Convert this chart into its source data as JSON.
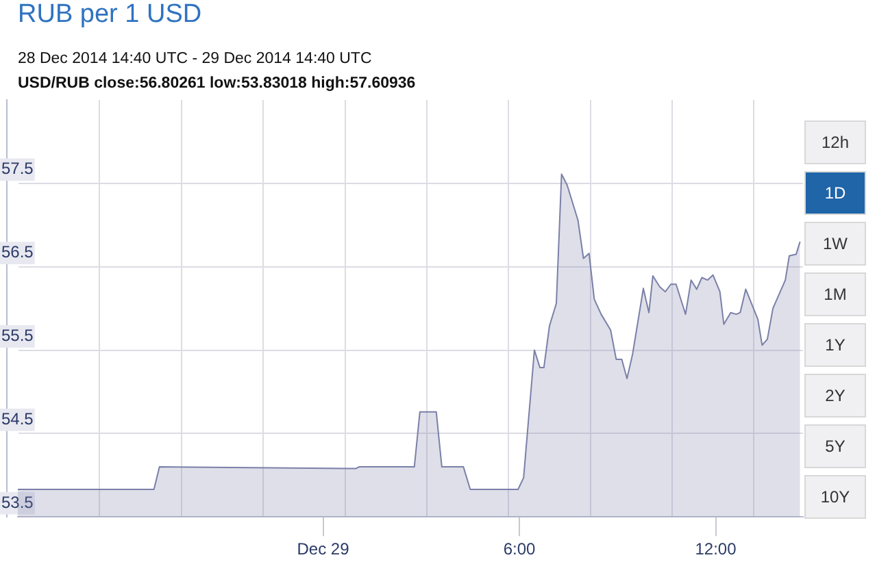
{
  "chart_data": {
    "type": "area",
    "title": "RUB per 1 USD",
    "subtitle": "28 Dec 2014 14:40 UTC - 29 Dec 2014 14:40 UTC",
    "annotations": [
      "USD/RUB close:56.80261 low:53.83018 high:57.60936",
      "12h",
      "1D",
      "1W",
      "1M",
      "1Y",
      "2Y",
      "5Y",
      "10Y"
    ],
    "x": [
      -9.33,
      -5.17,
      -5.0,
      1.0,
      1.1,
      2.79,
      2.96,
      3.46,
      3.63,
      4.29,
      4.5,
      5.96,
      6.13,
      6.46,
      6.63,
      6.75,
      6.92,
      7.13,
      7.29,
      7.46,
      7.79,
      7.96,
      8.13,
      8.29,
      8.5,
      8.79,
      8.96,
      9.13,
      9.29,
      9.46,
      9.79,
      9.96,
      10.08,
      10.29,
      10.46,
      10.63,
      10.79,
      11.0,
      11.08,
      11.25,
      11.42,
      11.58,
      11.75,
      11.92,
      12.13,
      12.25,
      12.46,
      12.63,
      12.75,
      12.92,
      13.29,
      13.42,
      13.58,
      13.75,
      14.13,
      14.25,
      14.46,
      14.58
    ],
    "series": [
      {
        "color": "#7a80a8",
        "values": [
          53.83,
          53.83,
          54.1,
          54.08,
          54.1,
          54.1,
          54.76,
          54.76,
          54.1,
          54.1,
          53.83,
          53.83,
          53.97,
          55.5,
          55.29,
          55.29,
          55.79,
          56.06,
          57.61,
          57.48,
          57.06,
          56.6,
          56.66,
          56.11,
          55.93,
          55.74,
          55.39,
          55.39,
          55.16,
          55.45,
          56.24,
          55.95,
          56.39,
          56.26,
          56.2,
          56.29,
          56.29,
          56.03,
          55.93,
          56.34,
          56.23,
          56.37,
          56.34,
          56.4,
          56.2,
          55.81,
          55.95,
          55.93,
          55.95,
          56.23,
          55.87,
          55.56,
          55.63,
          56.0,
          56.34,
          56.63,
          56.65,
          56.8
        ]
      }
    ],
    "xlim": [
      -9.33,
      14.67
    ],
    "xticks": [
      {
        "value": -6.83,
        "label": null
      },
      {
        "value": -4.33,
        "label": null
      },
      {
        "value": -1.83,
        "label": null
      },
      {
        "value": 0,
        "label": "Dec 29"
      },
      {
        "value": 0.67,
        "label": null
      },
      {
        "value": 3.17,
        "label": null
      },
      {
        "value": 5.67,
        "label": null
      },
      {
        "value": 6,
        "label": "6:00"
      },
      {
        "value": 8.17,
        "label": null
      },
      {
        "value": 10.67,
        "label": null
      },
      {
        "value": 12,
        "label": "12:00"
      },
      {
        "value": 13.17,
        "label": null
      }
    ],
    "ylim": [
      53.5,
      58.5
    ],
    "yticks": [
      53.5,
      54.5,
      55.5,
      56.5,
      57.5
    ],
    "grid": true,
    "legend": false
  }
}
